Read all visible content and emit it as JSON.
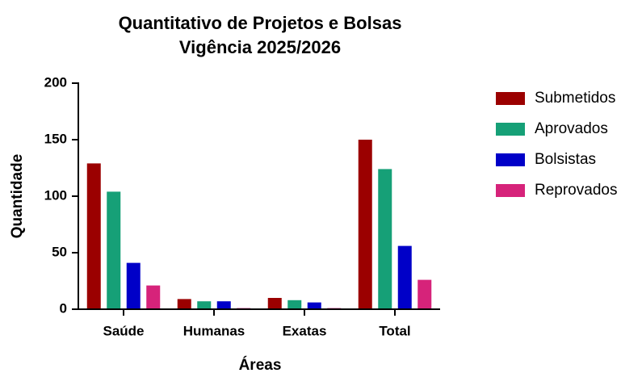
{
  "chart_data": {
    "type": "bar",
    "title": "Quantitativo de Projetos e Bolsas",
    "subtitle": "Vigência 2025/2026",
    "x_label": "Áreas",
    "y_label": "Quantidade",
    "categories": [
      "Saúde",
      "Humanas",
      "Exatas",
      "Total"
    ],
    "series": [
      {
        "name": "Submetidos",
        "color": "#9b0000",
        "values": [
          129,
          9,
          10,
          150
        ]
      },
      {
        "name": "Aprovados",
        "color": "#16a077",
        "values": [
          104,
          7,
          8,
          124
        ]
      },
      {
        "name": "Bolsistas",
        "color": "#0000c8",
        "values": [
          41,
          7,
          6,
          56
        ]
      },
      {
        "name": "Reprovados",
        "color": "#d6237a",
        "values": [
          21,
          1,
          1,
          26
        ]
      }
    ],
    "ylim": [
      0,
      200
    ],
    "yticks": [
      0,
      50,
      100,
      150,
      200
    ],
    "grid": false,
    "legend": "right"
  }
}
